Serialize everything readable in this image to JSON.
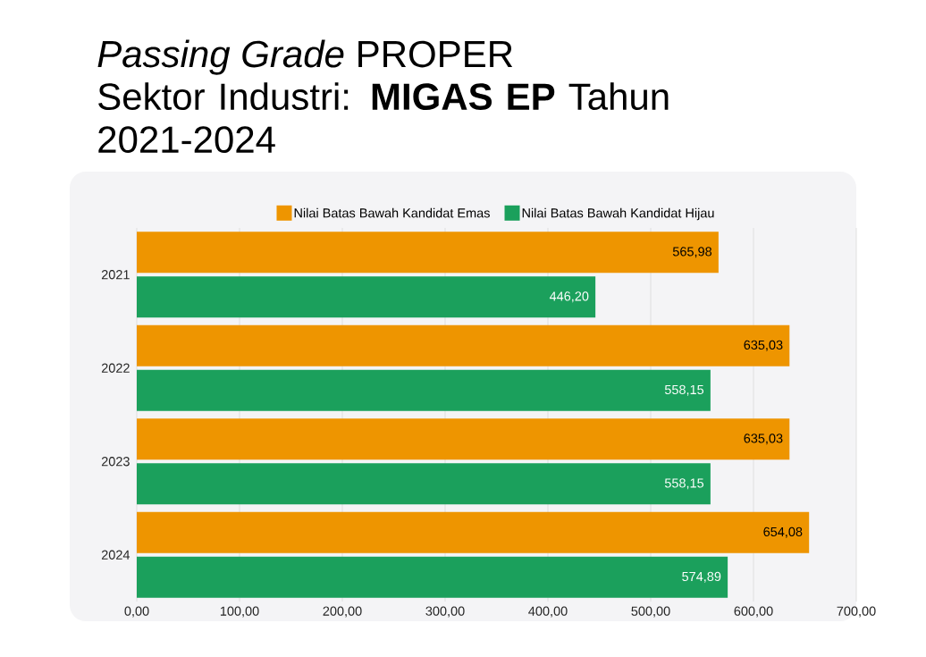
{
  "chart_data": {
    "type": "bar",
    "orientation": "horizontal",
    "title": "*Passing Grade* PROPER",
    "subtitle": "Sektor Industri: **MIGAS EP** Tahun 2021-2024",
    "categories": [
      "2021",
      "2022",
      "2023",
      "2024"
    ],
    "series": [
      {
        "name": "Nilai Batas Bawah Kandidat Emas",
        "color": "#ee9500",
        "values": [
          565.98,
          635.03,
          635.03,
          654.08
        ],
        "value_labels": [
          "565,98",
          "635,03",
          "635,03",
          "654,08"
        ]
      },
      {
        "name": "Nilai Batas Bawah Kandidat Hijau",
        "color": "#1ba05c",
        "values": [
          446.2,
          558.15,
          558.15,
          574.89
        ],
        "value_labels": [
          "446,20",
          "558,15",
          "558,15",
          "574,89"
        ]
      }
    ],
    "xlim": [
      0,
      700
    ],
    "xticks": [
      {
        "value": 0,
        "label": "0,00"
      },
      {
        "value": 100,
        "label": "100,00"
      },
      {
        "value": 200,
        "label": "200,00"
      },
      {
        "value": 300,
        "label": "300,00"
      },
      {
        "value": 400,
        "label": "400,00"
      },
      {
        "value": 500,
        "label": "500,00"
      },
      {
        "value": 600,
        "label": "600,00"
      },
      {
        "value": 700,
        "label": "700,00"
      }
    ],
    "grid": "x",
    "legend": "top"
  }
}
